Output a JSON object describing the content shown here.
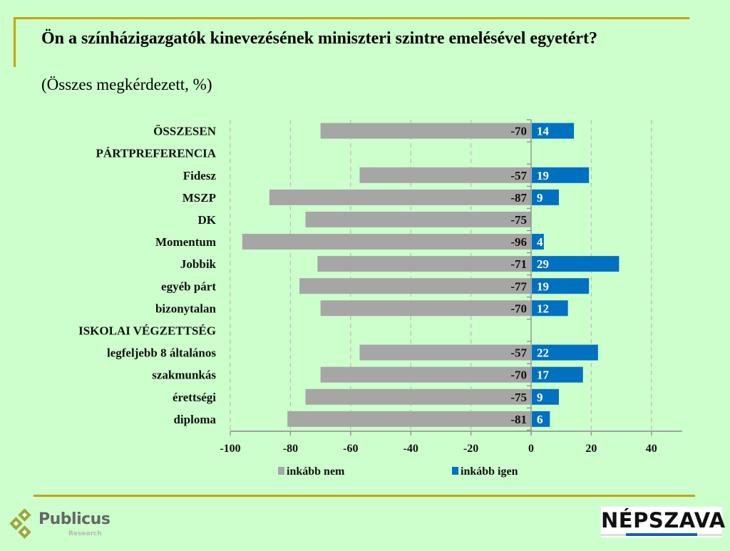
{
  "header": {
    "title": "Ön a színházigazgatók kinevezésének miniszteri szintre emelésével egyetért?",
    "subtitle": "(Összes megkérdezett, %)"
  },
  "colors": {
    "background": "#ccffcc",
    "accent_line": "#c9a400",
    "nem": "#a6a6a6",
    "igen": "#0070c0"
  },
  "chart_data": {
    "type": "bar",
    "orientation": "horizontal-diverging",
    "title": "Ön a színházigazgatók kinevezésének miniszteri szintre emelésével egyetért?",
    "subtitle": "(Összes megkérdezett, %)",
    "xlim": [
      -100,
      50
    ],
    "xticks": [
      -100,
      -80,
      -60,
      -40,
      -20,
      0,
      20,
      40
    ],
    "xtick_labels": [
      "-100",
      "-80",
      "-60",
      "-40",
      "-20",
      "0",
      "20",
      "40"
    ],
    "grid": "vertical dashed",
    "legend_position": "bottom",
    "categories": [
      {
        "label": "ÖSSZESEN",
        "bold": true,
        "nem": -70,
        "igen": 14
      },
      {
        "label": "PÁRTPREFERENCIA",
        "bold": true,
        "header": true
      },
      {
        "label": "Fidesz",
        "bold": false,
        "nem": -57,
        "igen": 19
      },
      {
        "label": "MSZP",
        "bold": true,
        "nem": -87,
        "igen": 9
      },
      {
        "label": "DK",
        "bold": true,
        "nem": -75,
        "igen": 0
      },
      {
        "label": "Momentum",
        "bold": false,
        "nem": -96,
        "igen": 4
      },
      {
        "label": "Jobbik",
        "bold": false,
        "nem": -71,
        "igen": 29
      },
      {
        "label": "egyéb párt",
        "bold": false,
        "nem": -77,
        "igen": 19
      },
      {
        "label": "bizonytalan",
        "bold": false,
        "nem": -70,
        "igen": 12
      },
      {
        "label": "ISKOLAI VÉGZETTSÉG",
        "bold": true,
        "header": true
      },
      {
        "label": "legfeljebb 8 általános",
        "bold": false,
        "nem": -57,
        "igen": 22
      },
      {
        "label": "szakmunkás",
        "bold": false,
        "nem": -70,
        "igen": 17
      },
      {
        "label": "érettségi",
        "bold": false,
        "nem": -75,
        "igen": 9
      },
      {
        "label": "diploma",
        "bold": false,
        "nem": -81,
        "igen": 6
      }
    ],
    "series": [
      {
        "name": "inkább nem",
        "key": "nem",
        "color": "#a6a6a6"
      },
      {
        "name": "inkább igen",
        "key": "igen",
        "color": "#0070c0"
      }
    ]
  },
  "logos": {
    "publicus": {
      "name": "Publicus",
      "sub": "Research"
    },
    "nepszava": {
      "name": "NÉPSZAVA"
    }
  }
}
